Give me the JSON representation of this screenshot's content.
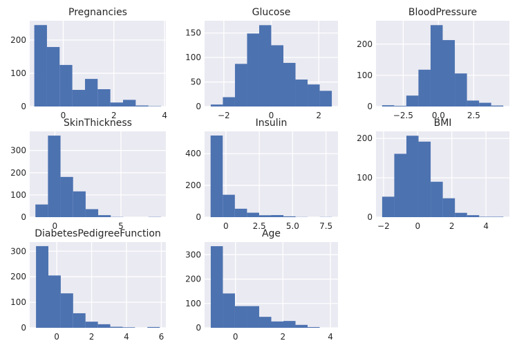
{
  "chart_data": [
    {
      "type": "bar",
      "title": "Pregnancies",
      "xlabel": "",
      "ylabel": "",
      "bin_edges": [
        -1.14,
        -0.64,
        -0.14,
        0.36,
        0.86,
        1.36,
        1.86,
        2.36,
        2.86,
        3.36,
        3.86
      ],
      "values": [
        245,
        179,
        125,
        50,
        83,
        52,
        12,
        20,
        3,
        1
      ],
      "xlim": [
        -1.32,
        4.05
      ],
      "ylim": [
        0,
        258
      ],
      "xticks": [
        0,
        2,
        4
      ],
      "xtick_labels": [
        "0",
        "2",
        "4"
      ],
      "yticks": [
        0,
        100,
        200
      ],
      "ytick_labels": [
        "0",
        "100",
        "200"
      ],
      "grid": true,
      "color": "#4c72b0"
    },
    {
      "type": "bar",
      "title": "Glucose",
      "xlabel": "",
      "ylabel": "",
      "bin_edges": [
        -2.55,
        -2.04,
        -1.53,
        -1.02,
        -0.51,
        0.0,
        0.51,
        1.02,
        1.53,
        2.04,
        2.55
      ],
      "values": [
        4,
        19,
        87,
        149,
        166,
        125,
        89,
        55,
        45,
        32
      ],
      "xlim": [
        -2.81,
        2.81
      ],
      "ylim": [
        0,
        175
      ],
      "xticks": [
        -2,
        0,
        2
      ],
      "xtick_labels": [
        "−2",
        "0",
        "2"
      ],
      "yticks": [
        0,
        50,
        100,
        150
      ],
      "ytick_labels": [
        "0",
        "50",
        "100",
        "150"
      ],
      "grid": true,
      "color": "#4c72b0"
    },
    {
      "type": "bar",
      "title": "BloodPressure",
      "xlabel": "",
      "ylabel": "",
      "bin_edges": [
        -4.0,
        -3.14,
        -2.28,
        -1.42,
        -0.56,
        0.3,
        1.16,
        2.02,
        2.88,
        3.74,
        4.6
      ],
      "values": [
        4,
        2,
        35,
        118,
        261,
        213,
        106,
        19,
        12,
        3
      ],
      "xlim": [
        -4.43,
        5.03
      ],
      "ylim": [
        0,
        275
      ],
      "xticks": [
        -2.5,
        0,
        2.5
      ],
      "xtick_labels": [
        "−2.5",
        "0.0",
        "2.5"
      ],
      "yticks": [
        0,
        100,
        200
      ],
      "ytick_labels": [
        "0",
        "100",
        "200"
      ],
      "grid": true,
      "color": "#4c72b0"
    },
    {
      "type": "bar",
      "title": "SkinThickness",
      "xlabel": "",
      "ylabel": "",
      "bin_edges": [
        -1.47,
        -0.52,
        0.43,
        1.38,
        2.33,
        3.28,
        4.23,
        5.18,
        6.13,
        7.08,
        8.03
      ],
      "values": [
        57,
        367,
        181,
        116,
        36,
        9,
        1,
        0,
        0,
        1
      ],
      "xlim": [
        -1.9,
        8.4
      ],
      "ylim": [
        0,
        386
      ],
      "xticks": [
        0,
        5
      ],
      "xtick_labels": [
        "0",
        "5"
      ],
      "yticks": [
        0,
        100,
        200,
        300
      ],
      "ytick_labels": [
        "0",
        "100",
        "200",
        "300"
      ],
      "grid": true,
      "color": "#4c72b0"
    },
    {
      "type": "bar",
      "title": "Insulin",
      "xlabel": "",
      "ylabel": "",
      "bin_edges": [
        -1.15,
        -0.24,
        0.67,
        1.58,
        2.49,
        3.4,
        4.31,
        5.22,
        6.13,
        7.04,
        7.95
      ],
      "values": [
        514,
        141,
        53,
        28,
        12,
        13,
        5,
        1,
        0,
        1
      ],
      "xlim": [
        -1.6,
        8.4
      ],
      "ylim": [
        0,
        540
      ],
      "xticks": [
        0,
        2.5,
        5,
        7.5
      ],
      "xtick_labels": [
        "0",
        "2.5",
        "5.0",
        "7.5"
      ],
      "yticks": [
        0,
        200,
        400
      ],
      "ytick_labels": [
        "0",
        "200",
        "400"
      ],
      "grid": true,
      "color": "#4c72b0"
    },
    {
      "type": "bar",
      "title": "BMI",
      "xlabel": "",
      "ylabel": "",
      "bin_edges": [
        -2.08,
        -1.37,
        -0.66,
        0.05,
        0.76,
        1.47,
        2.18,
        2.89,
        3.6,
        4.31,
        5.02
      ],
      "values": [
        52,
        161,
        207,
        192,
        90,
        48,
        11,
        5,
        1,
        1
      ],
      "xlim": [
        -2.44,
        5.37
      ],
      "ylim": [
        0,
        218
      ],
      "xticks": [
        -2,
        0,
        2,
        4
      ],
      "xtick_labels": [
        "−2",
        "0",
        "2",
        "4"
      ],
      "yticks": [
        0,
        100,
        200
      ],
      "ytick_labels": [
        "0",
        "100",
        "200"
      ],
      "grid": true,
      "color": "#4c72b0"
    },
    {
      "type": "bar",
      "title": "DiabetesPedigreeFunction",
      "xlabel": "",
      "ylabel": "",
      "bin_edges": [
        -1.19,
        -0.48,
        0.23,
        0.94,
        1.65,
        2.36,
        3.07,
        3.78,
        4.49,
        5.2,
        5.91
      ],
      "values": [
        320,
        205,
        135,
        57,
        24,
        14,
        4,
        2,
        0,
        3
      ],
      "xlim": [
        -1.55,
        6.26
      ],
      "ylim": [
        0,
        336
      ],
      "xticks": [
        0,
        2,
        4,
        6
      ],
      "xtick_labels": [
        "0",
        "2",
        "4",
        "6"
      ],
      "yticks": [
        0,
        100,
        200,
        300
      ],
      "ytick_labels": [
        "0",
        "100",
        "200",
        "300"
      ],
      "grid": true,
      "color": "#4c72b0"
    },
    {
      "type": "bar",
      "title": "Age",
      "xlabel": "",
      "ylabel": "",
      "bin_edges": [
        -1.04,
        -0.53,
        -0.02,
        0.49,
        1.0,
        1.51,
        2.02,
        2.53,
        3.04,
        3.55,
        4.06
      ],
      "values": [
        335,
        141,
        89,
        89,
        45,
        26,
        28,
        12,
        3,
        0
      ],
      "xlim": [
        -1.3,
        4.32
      ],
      "ylim": [
        0,
        352
      ],
      "xticks": [
        0,
        2,
        4
      ],
      "xtick_labels": [
        "0",
        "2",
        "4"
      ],
      "yticks": [
        0,
        100,
        200,
        300
      ],
      "ytick_labels": [
        "0",
        "100",
        "200",
        "300"
      ],
      "grid": true,
      "color": "#4c72b0"
    }
  ]
}
